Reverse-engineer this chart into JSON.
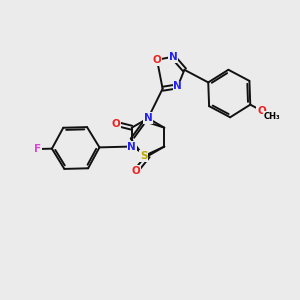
{
  "bg_color": "#ebebeb",
  "atom_colors": {
    "N": "#2222ee",
    "O": "#ee2222",
    "S": "#bbaa00",
    "F": "#dd44dd",
    "C": "#000000"
  },
  "bond_color": "#111111",
  "lw": 1.4,
  "fs": 7.5
}
